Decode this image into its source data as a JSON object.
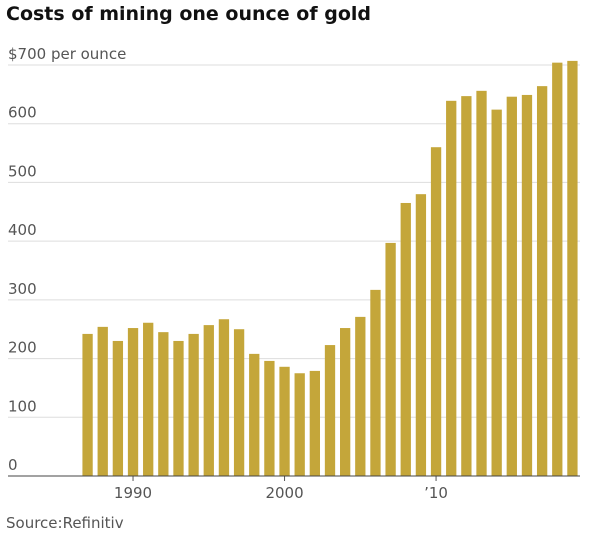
{
  "chart_data": {
    "type": "bar",
    "title": "Costs of mining one ounce of gold",
    "source": "Source:Refinitiv",
    "categories": [
      null,
      null,
      null,
      "1990",
      null,
      null,
      null,
      null,
      null,
      null,
      null,
      null,
      null,
      "2000",
      null,
      null,
      null,
      null,
      null,
      null,
      null,
      null,
      null,
      "’10",
      null,
      null,
      null,
      null,
      null,
      null,
      null,
      null,
      null
    ],
    "values": [
      242,
      254,
      230,
      252,
      261,
      245,
      230,
      242,
      257,
      267,
      250,
      208,
      196,
      186,
      175,
      179,
      223,
      252,
      271,
      317,
      397,
      465,
      480,
      560,
      639,
      647,
      656,
      624,
      646,
      649,
      664,
      704,
      707
    ],
    "color": "#c4a63a",
    "ylim": [
      0,
      700
    ],
    "yticks": [
      0,
      100,
      200,
      300,
      400,
      500,
      600,
      {
        "value": 700,
        "label": "$700 per ounce"
      }
    ],
    "grid": true
  }
}
